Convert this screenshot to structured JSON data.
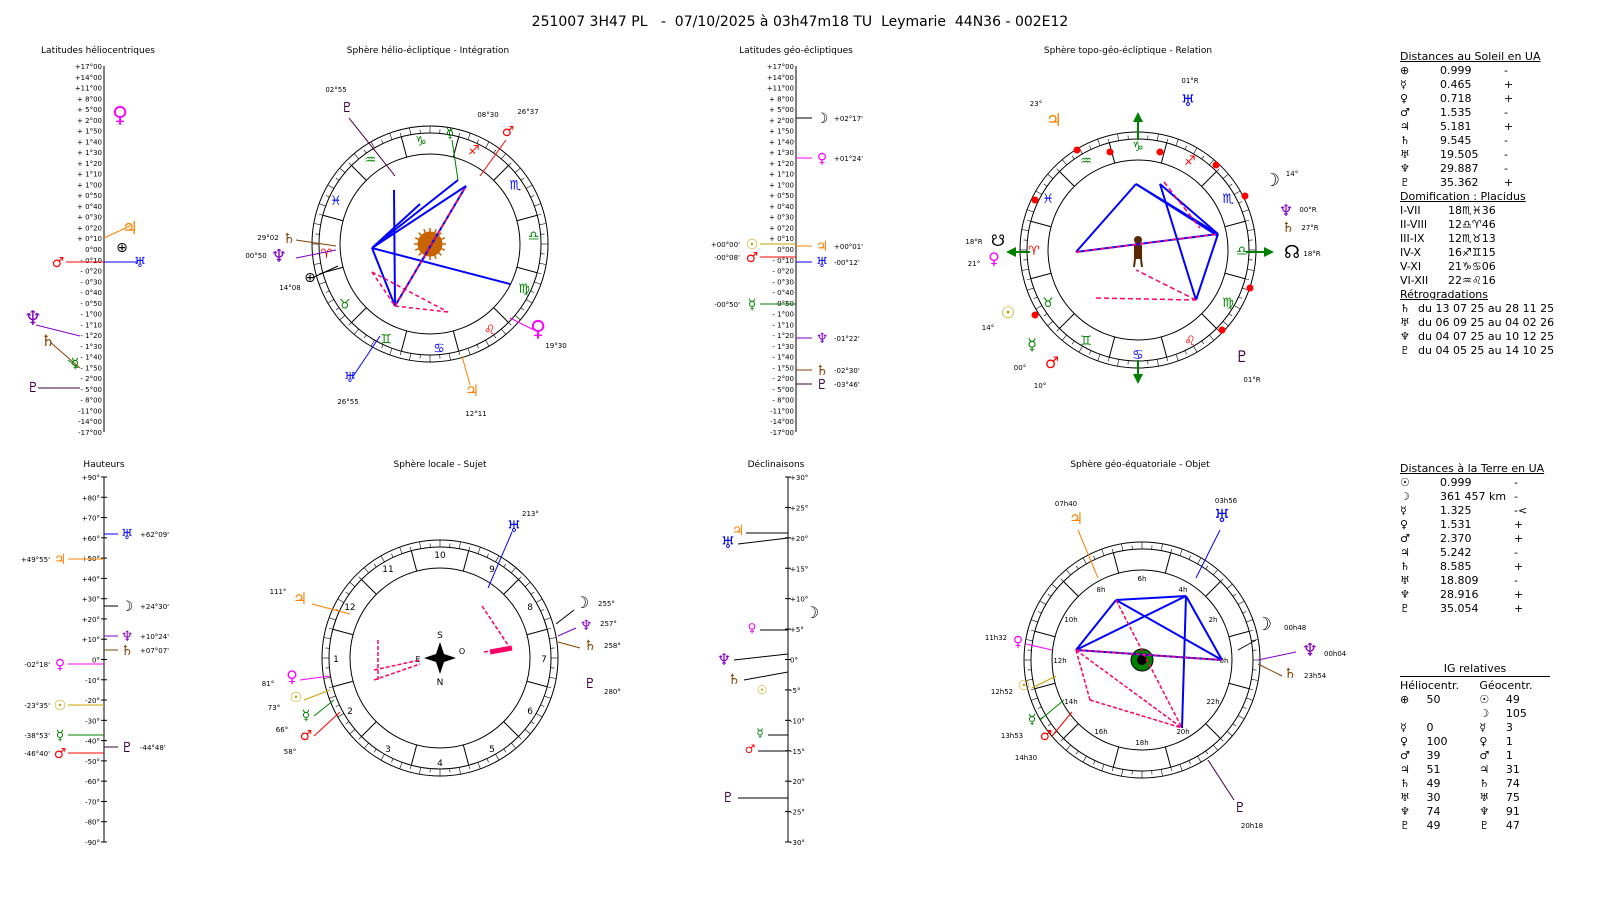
{
  "header": {
    "title": "251007 3H47 PL   -  07/10/2025 à 03h47m18 TU  Leymarie  44N36 - 002E12"
  },
  "colors": {
    "sun": "#c8a000",
    "moon": "#000000",
    "mercury": "#008000",
    "venus": "#ff00ff",
    "mars": "#ff0000",
    "jupiter": "#ff8000",
    "saturn": "#804000",
    "uranus": "#0000ff",
    "neptune": "#8000c0",
    "pluto": "#400040",
    "earth": "#000000",
    "aspect_blue": "#0000ff",
    "aspect_red": "#ff0066"
  },
  "glyphs": {
    "sun": "☉",
    "moon": "☽",
    "mercury": "☿",
    "venus": "♀",
    "mars": "♂",
    "jupiter": "♃",
    "saturn": "♄",
    "uranus": "♅",
    "neptune": "♆",
    "pluto": "♇",
    "earth": "⊕",
    "node": "☊",
    "node_s": "☋",
    "signs": [
      "♈",
      "♉",
      "♊",
      "♋",
      "♌",
      "♍",
      "♎",
      "♏",
      "♐",
      "♑",
      "♒",
      "♓"
    ]
  },
  "panels": {
    "lat_helio": {
      "title": "Latitudes héliocentriques",
      "ticks": [
        "+17°00",
        "+14°00",
        "+11°00",
        "+ 8°00",
        "+ 5°00",
        "+ 2°00",
        "+ 1°50",
        "+ 1°40",
        "+ 1°30",
        "+ 1°20",
        "+ 1°10",
        "+ 1°00",
        "+ 0°50",
        "+ 0°40",
        "+ 0°30",
        "+ 0°20",
        "+ 0°10",
        "0°00",
        "- 0°10",
        "- 0°20",
        "- 0°30",
        "- 0°40",
        "- 0°50",
        "- 1°00",
        "- 1°10",
        "- 1°20",
        "- 1°30",
        "- 1°40",
        "- 1°50",
        "- 2°00",
        "- 5°00",
        "- 8°00",
        "-11°00",
        "-14°00",
        "-17°00"
      ]
    },
    "sphere_helio": {
      "title": "Sphère hélio-écliptique - Intégration",
      "labels": [
        "02°55",
        "08°30",
        "26°37",
        "29°02",
        "00°50",
        "14°08",
        "26°55",
        "12°11",
        "19°30"
      ]
    },
    "lat_geo": {
      "title": "Latitudes géo-écliptiques",
      "ticks": [
        "+17°00",
        "+14°00",
        "+11°00",
        "+ 8°00",
        "+ 5°00",
        "+ 2°00",
        "+ 1°50",
        "+ 1°40",
        "+ 1°30",
        "+ 1°20",
        "+ 1°10",
        "+ 1°00",
        "+ 0°50",
        "+ 0°40",
        "+ 0°30",
        "+ 0°20",
        "+ 0°10",
        "0°00",
        "- 0°10",
        "- 0°20",
        "- 0°30",
        "- 0°40",
        "- 0°50",
        "- 1°00",
        "- 1°10",
        "- 1°20",
        "- 1°30",
        "- 1°40",
        "- 1°50",
        "- 2°00",
        "- 5°00",
        "- 8°00",
        "-11°00",
        "-14°00",
        "-17°00"
      ],
      "values": [
        "+02°17'",
        "+01°24'",
        "+00°00'",
        "+00°01'",
        "-00°08'",
        "-00°12'",
        "-00°50'",
        "-01°22'",
        "-02°30'",
        "-03°46'"
      ]
    },
    "sphere_topo": {
      "title": "Sphère topo-géo-écliptique - Relation",
      "labels": [
        "01°R",
        "23°",
        "14°",
        "00°R",
        "27°R",
        "18°R",
        "18°R",
        "21°",
        "14°",
        "00°",
        "10°",
        "01°R"
      ]
    },
    "hauteurs": {
      "title": "Hauteurs",
      "ticks": [
        "+90°",
        "+80°",
        "+70°",
        "+60°",
        "+50°",
        "+40°",
        "+30°",
        "+20°",
        "+10°",
        "0°",
        "-10°",
        "-20°",
        "-30°",
        "-40°",
        "-50°",
        "-60°",
        "-70°",
        "-80°",
        "-90°"
      ],
      "values": [
        "+62°09'",
        "+49°55'",
        "+24°30'",
        "+10°24'",
        "+07°07'",
        "-02°18'",
        "-23°35'",
        "-38°53'",
        "-44°48'",
        "-46°40'"
      ]
    },
    "sphere_locale": {
      "title": "Sphère locale - Sujet",
      "houses": [
        "1",
        "2",
        "3",
        "4",
        "5",
        "6",
        "7",
        "8",
        "9",
        "10",
        "11",
        "12"
      ],
      "labels": [
        "213°",
        "111°",
        "255°",
        "257°",
        "258°",
        "280°",
        "81°",
        "73°",
        "66°",
        "58°"
      ],
      "compass": [
        "S",
        "N",
        "E",
        "O"
      ]
    },
    "declinaisons": {
      "title": "Déclinaisons",
      "ticks": [
        "+30°",
        "+25°",
        "+20°",
        "+15°",
        "+10°",
        "+5°",
        "0°",
        "-5°",
        "-10°",
        "-15°",
        "-20°",
        "-25°",
        "-30°"
      ]
    },
    "sphere_equat": {
      "title": "Sphère géo-équatoriale - Objet",
      "hours": [
        "0h",
        "2h",
        "4h",
        "6h",
        "8h",
        "10h",
        "12h",
        "14h",
        "16h",
        "18h",
        "20h",
        "22h"
      ],
      "labels": [
        "07h40",
        "03h56",
        "00h48",
        "00h04",
        "23h54",
        "11h32",
        "12h52",
        "13h53",
        "14h30",
        "20h18"
      ]
    }
  },
  "right": {
    "dist_sun": {
      "heading": "Distances au Soleil en UA",
      "rows": [
        [
          "⊕",
          "0.999",
          "-"
        ],
        [
          "☿",
          "0.465",
          "+"
        ],
        [
          "♀",
          "0.718",
          "+"
        ],
        [
          "♂",
          "1.535",
          "-"
        ],
        [
          "♃",
          "5.181",
          "+"
        ],
        [
          "♄",
          "9.545",
          "-"
        ],
        [
          "♅",
          "19.505",
          "-"
        ],
        [
          "♆",
          "29.887",
          "-"
        ],
        [
          "♇",
          "35.362",
          "+"
        ]
      ]
    },
    "domification": {
      "heading": "Domification : Placidus",
      "rows": [
        [
          "I-VII",
          "18♏♓36"
        ],
        [
          "II-VIII",
          "12♎♈46"
        ],
        [
          "III-IX",
          "12♏♉13"
        ],
        [
          "IV-X",
          "16♐♊15"
        ],
        [
          "V-XI",
          "21♑♋06"
        ],
        [
          "VI-XII",
          "22♒♌16"
        ]
      ]
    },
    "retro": {
      "heading": "Rétrogradations",
      "rows": [
        [
          "♄",
          "du 13 07 25 au 28 11 25"
        ],
        [
          "♅",
          "du 06 09 25 au 04 02 26"
        ],
        [
          "♆",
          "du 04 07 25 au 10 12 25"
        ],
        [
          "♇",
          "du 04 05 25 au 14 10 25"
        ]
      ]
    },
    "dist_earth": {
      "heading": "Distances à la Terre en UA",
      "rows": [
        [
          "☉",
          "0.999",
          "-"
        ],
        [
          "☽",
          "361 457 km",
          "-"
        ],
        [
          "☿",
          "1.325",
          "-<"
        ],
        [
          "♀",
          "1.531",
          "+"
        ],
        [
          "♂",
          "2.370",
          "+"
        ],
        [
          "♃",
          "5.242",
          "-"
        ],
        [
          "♄",
          "8.585",
          "+"
        ],
        [
          "♅",
          "18.809",
          "-"
        ],
        [
          "♆",
          "28.916",
          "+"
        ],
        [
          "♇",
          "35.054",
          "+"
        ]
      ]
    },
    "ig": {
      "heading": "IG relatives",
      "col1": "Héliocentr.",
      "col2": "Géocentr.",
      "rows": [
        [
          "⊕",
          "50",
          "☉",
          "49"
        ],
        [
          "",
          "",
          "☽",
          "105"
        ],
        [
          "☿",
          "0",
          "☿",
          "3"
        ],
        [
          "♀",
          "100",
          "♀",
          "1"
        ],
        [
          "♂",
          "39",
          "♂",
          "1"
        ],
        [
          "♃",
          "51",
          "♃",
          "31"
        ],
        [
          "♄",
          "49",
          "♄",
          "74"
        ],
        [
          "♅",
          "30",
          "♅",
          "75"
        ],
        [
          "♆",
          "74",
          "♆",
          "91"
        ],
        [
          "♇",
          "49",
          "♇",
          "47"
        ]
      ]
    }
  }
}
